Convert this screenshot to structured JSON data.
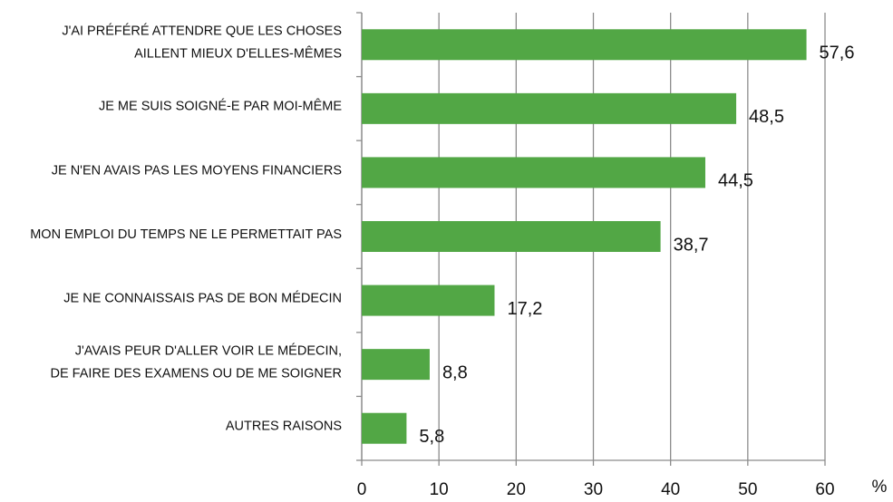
{
  "chart_data": {
    "type": "bar",
    "orientation": "horizontal",
    "categories": [
      [
        "J'AI PRÉFÉRÉ ATTENDRE QUE LES CHOSES",
        "AILLENT MIEUX D'ELLES-MÊMES"
      ],
      [
        "JE ME SUIS SOIGNÉ-E PAR MOI-MÊME"
      ],
      [
        "JE N'EN AVAIS PAS LES MOYENS FINANCIERS"
      ],
      [
        "MON EMPLOI DU TEMPS NE LE PERMETTAIT PAS"
      ],
      [
        "JE NE CONNAISSAIS PAS DE BON MÉDECIN"
      ],
      [
        "J'AVAIS PEUR D'ALLER VOIR LE MÉDECIN,",
        "DE FAIRE DES EXAMENS OU DE ME SOIGNER"
      ],
      [
        "AUTRES RAISONS"
      ]
    ],
    "values": [
      57.6,
      48.5,
      44.5,
      38.7,
      17.2,
      8.8,
      5.8
    ],
    "value_labels": [
      "57,6",
      "48,5",
      "44,5",
      "38,7",
      "17,2",
      "8,8",
      "5,8"
    ],
    "color": "#52a745",
    "xlim": [
      0,
      60
    ],
    "xticks": [
      0,
      10,
      20,
      30,
      40,
      50,
      60
    ],
    "xlabel": "%",
    "grid": true
  }
}
